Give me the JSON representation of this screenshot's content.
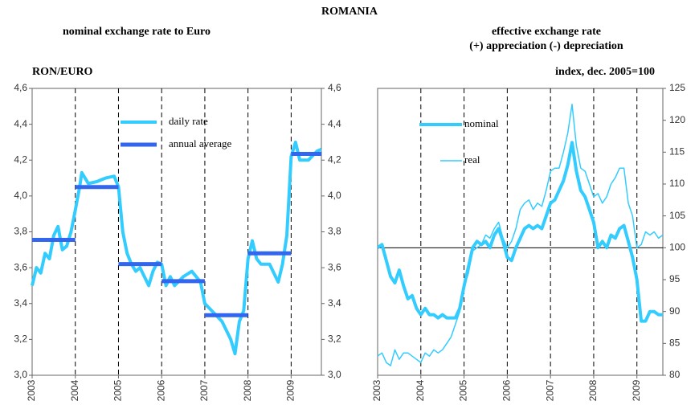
{
  "title": "ROMANIA",
  "chart_data": [
    {
      "type": "line",
      "title": "nominal exchange rate to Euro",
      "y_label": "RON/EURO",
      "xlim": [
        2003,
        2009.7
      ],
      "xticks": [
        2003,
        2004,
        2005,
        2006,
        2007,
        2008,
        2009
      ],
      "ylim": [
        3.0,
        4.6
      ],
      "yticks": [
        {
          "value": 3.0,
          "label": "3,0"
        },
        {
          "value": 3.2,
          "label": "3,2"
        },
        {
          "value": 3.4,
          "label": "3,4"
        },
        {
          "value": 3.6,
          "label": "3,6"
        },
        {
          "value": 3.8,
          "label": "3,8"
        },
        {
          "value": 4.0,
          "label": "4,0"
        },
        {
          "value": 4.2,
          "label": "4,2"
        },
        {
          "value": 4.4,
          "label": "4,4"
        },
        {
          "value": 4.6,
          "label": "4,6"
        }
      ],
      "mirror_y": true,
      "grid": "x-dashed",
      "series": [
        {
          "name": "daily rate",
          "color": "#33ccff",
          "width": 4,
          "x": [
            2003.0,
            2003.1,
            2003.2,
            2003.3,
            2003.4,
            2003.5,
            2003.6,
            2003.7,
            2003.8,
            2003.9,
            2004.0,
            2004.1,
            2004.15,
            2004.3,
            2004.5,
            2004.7,
            2004.9,
            2005.0,
            2005.1,
            2005.2,
            2005.3,
            2005.4,
            2005.5,
            2005.6,
            2005.7,
            2005.8,
            2005.9,
            2006.0,
            2006.1,
            2006.2,
            2006.3,
            2006.5,
            2006.7,
            2006.9,
            2007.0,
            2007.2,
            2007.4,
            2007.6,
            2007.7,
            2007.8,
            2007.9,
            2008.0,
            2008.1,
            2008.2,
            2008.3,
            2008.5,
            2008.7,
            2008.8,
            2008.9,
            2009.0,
            2009.1,
            2009.2,
            2009.4,
            2009.6,
            2009.7
          ],
          "values": [
            3.5,
            3.6,
            3.57,
            3.68,
            3.65,
            3.78,
            3.83,
            3.7,
            3.72,
            3.8,
            3.92,
            4.05,
            4.13,
            4.07,
            4.08,
            4.1,
            4.11,
            4.05,
            3.8,
            3.68,
            3.62,
            3.58,
            3.6,
            3.55,
            3.5,
            3.58,
            3.63,
            3.62,
            3.5,
            3.55,
            3.5,
            3.55,
            3.58,
            3.52,
            3.4,
            3.35,
            3.3,
            3.2,
            3.12,
            3.3,
            3.36,
            3.65,
            3.75,
            3.65,
            3.62,
            3.62,
            3.52,
            3.62,
            3.78,
            4.22,
            4.3,
            4.2,
            4.2,
            4.25,
            4.26
          ]
        },
        {
          "name": "annual average",
          "color": "#3366ee",
          "width": 5,
          "kind": "segments",
          "x": [
            2003,
            2004,
            2005,
            2006,
            2007,
            2008,
            2009
          ],
          "values": [
            3.755,
            4.05,
            3.62,
            3.525,
            3.335,
            3.68,
            4.235
          ]
        }
      ]
    },
    {
      "type": "line",
      "title": "effective exchange rate",
      "subtitle": "(+) appreciation (-) depreciation",
      "y_label": "index, dec. 2005=100",
      "xlim": [
        2003,
        2009.6
      ],
      "xticks": [
        2003,
        2004,
        2005,
        2006,
        2007,
        2008,
        2009
      ],
      "ylim": [
        80,
        125
      ],
      "yticks": [
        80,
        85,
        90,
        95,
        100,
        105,
        110,
        115,
        120,
        125
      ],
      "yaxis_side": "right",
      "grid": "x-dashed",
      "reference_line": 100,
      "series": [
        {
          "name": "nominal",
          "color": "#33ccff",
          "width": 4,
          "x": [
            2003.0,
            2003.1,
            2003.2,
            2003.3,
            2003.4,
            2003.5,
            2003.6,
            2003.7,
            2003.8,
            2003.9,
            2004.0,
            2004.1,
            2004.2,
            2004.3,
            2004.4,
            2004.5,
            2004.6,
            2004.8,
            2004.9,
            2005.0,
            2005.1,
            2005.2,
            2005.3,
            2005.4,
            2005.5,
            2005.6,
            2005.7,
            2005.8,
            2005.9,
            2006.0,
            2006.1,
            2006.2,
            2006.3,
            2006.4,
            2006.5,
            2006.6,
            2006.7,
            2006.8,
            2006.9,
            2007.0,
            2007.1,
            2007.2,
            2007.3,
            2007.4,
            2007.5,
            2007.6,
            2007.7,
            2007.8,
            2007.9,
            2008.0,
            2008.1,
            2008.2,
            2008.3,
            2008.4,
            2008.5,
            2008.6,
            2008.7,
            2008.8,
            2008.9,
            2009.0,
            2009.1,
            2009.2,
            2009.3,
            2009.4,
            2009.5,
            2009.6
          ],
          "values": [
            100,
            100.5,
            98,
            95.5,
            94.5,
            96.5,
            94,
            92,
            92.5,
            90.5,
            89.5,
            90.5,
            89.5,
            89.5,
            89,
            89.5,
            89,
            89,
            90.5,
            94,
            97,
            100,
            101,
            100.5,
            101,
            100,
            102,
            103,
            101,
            98.5,
            98,
            100,
            101.5,
            103,
            103.5,
            103,
            103.5,
            103,
            105,
            107,
            107.5,
            109,
            110.5,
            113,
            116.5,
            112,
            109,
            108,
            106,
            104,
            100,
            101,
            100,
            102,
            101.5,
            103,
            103.5,
            101,
            98.5,
            95,
            88.5,
            88.5,
            90,
            90,
            89.5,
            89.5
          ]
        },
        {
          "name": "real",
          "color": "#33ccff",
          "width": 1.5,
          "x": [
            2003.0,
            2003.1,
            2003.2,
            2003.3,
            2003.4,
            2003.5,
            2003.6,
            2003.7,
            2003.8,
            2003.9,
            2004.0,
            2004.1,
            2004.2,
            2004.3,
            2004.4,
            2004.5,
            2004.6,
            2004.7,
            2004.8,
            2004.9,
            2005.0,
            2005.1,
            2005.2,
            2005.3,
            2005.4,
            2005.5,
            2005.6,
            2005.7,
            2005.8,
            2005.9,
            2006.0,
            2006.1,
            2006.2,
            2006.3,
            2006.4,
            2006.5,
            2006.6,
            2006.7,
            2006.8,
            2006.9,
            2007.0,
            2007.1,
            2007.2,
            2007.3,
            2007.4,
            2007.5,
            2007.6,
            2007.7,
            2007.8,
            2007.9,
            2008.0,
            2008.1,
            2008.2,
            2008.3,
            2008.4,
            2008.5,
            2008.6,
            2008.7,
            2008.8,
            2008.9,
            2009.0,
            2009.1,
            2009.2,
            2009.3,
            2009.4,
            2009.5,
            2009.6
          ],
          "values": [
            83,
            83.5,
            82,
            81.5,
            84,
            82.5,
            83.5,
            83.5,
            83,
            82.5,
            82,
            83.5,
            83,
            84,
            83.5,
            84,
            85,
            86,
            88,
            90,
            94,
            96,
            99.5,
            100,
            100.5,
            102,
            101.5,
            103,
            104,
            101.5,
            100,
            101,
            103,
            106,
            107,
            107.5,
            106,
            107,
            106.5,
            109,
            112,
            112.5,
            112.5,
            115,
            118,
            122.5,
            116,
            112.5,
            112,
            110,
            108,
            108.5,
            107,
            108,
            110,
            111,
            112.5,
            112.5,
            107,
            105,
            100,
            100.5,
            102.5,
            102,
            102.5,
            101.5,
            102
          ]
        }
      ]
    }
  ]
}
